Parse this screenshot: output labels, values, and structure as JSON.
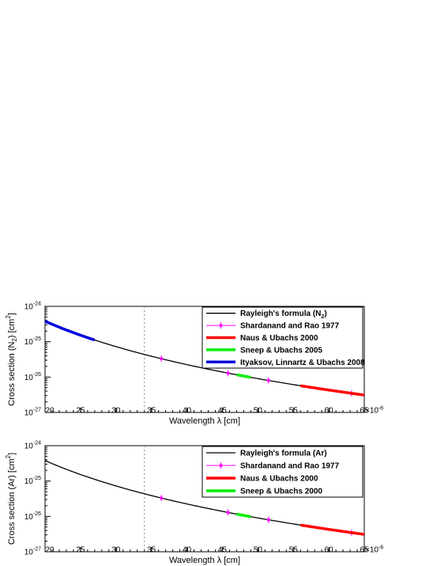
{
  "chart_data": [
    {
      "type": "line",
      "xlabel": "Wavelength λ [cm]",
      "ylabel_parts": [
        "Cross section (N",
        "2",
        ") [cm",
        "2",
        "]"
      ],
      "x_exponent": "×10",
      "x_exponent_sup": "-6",
      "x_ticks": [
        20,
        25,
        30,
        35,
        40,
        45,
        50,
        55,
        60,
        65
      ],
      "y_ticks": [
        {
          "base": "10",
          "exp": "-27"
        },
        {
          "base": "10",
          "exp": "-26"
        },
        {
          "base": "10",
          "exp": "-25"
        },
        {
          "base": "10",
          "exp": "-24"
        }
      ],
      "xlim": [
        20,
        65
      ],
      "ylim": [
        1e-27,
        1e-24
      ],
      "y_scale": "log",
      "vline_x": 34,
      "legend_position": "top-right",
      "series": [
        {
          "name_parts": [
            "Rayleigh's formula (N",
            "2",
            ")"
          ],
          "kind": "line",
          "color": "#000000",
          "x_range": [
            20,
            65
          ]
        },
        {
          "name_parts": [
            "Shardanand and Rao 1977"
          ],
          "kind": "points",
          "color": "#ff00ff",
          "x": [
            36.4,
            45.8,
            51.5,
            63.2
          ]
        },
        {
          "name_parts": [
            "Naus & Ubachs 2000"
          ],
          "kind": "band",
          "color": "#ff0000",
          "x_range": [
            56.0,
            65.0
          ]
        },
        {
          "name_parts": [
            "Sneep & Ubachs 2005"
          ],
          "kind": "band",
          "color": "#00ee00",
          "x_range": [
            47.0,
            49.0
          ]
        },
        {
          "name_parts": [
            "Ityaksov, Linnartz & Ubachs 2008"
          ],
          "kind": "band",
          "color": "#0000dd",
          "x_range": [
            20.0,
            27.0
          ]
        }
      ]
    },
    {
      "type": "line",
      "xlabel": "Wavelength λ [cm]",
      "ylabel_parts": [
        "Cross section (Ar) [cm",
        "2",
        "]"
      ],
      "x_exponent": "×10",
      "x_exponent_sup": "-6",
      "x_ticks": [
        20,
        25,
        30,
        35,
        40,
        45,
        50,
        55,
        60,
        65
      ],
      "y_ticks": [
        {
          "base": "10",
          "exp": "-27"
        },
        {
          "base": "10",
          "exp": "-26"
        },
        {
          "base": "10",
          "exp": "-25"
        },
        {
          "base": "10",
          "exp": "-24"
        }
      ],
      "xlim": [
        20,
        65
      ],
      "ylim": [
        1e-27,
        1e-24
      ],
      "y_scale": "log",
      "vline_x": 34,
      "legend_position": "top-right",
      "series": [
        {
          "name_parts": [
            "Rayleigh's formula (Ar)"
          ],
          "kind": "line",
          "color": "#000000",
          "x_range": [
            20,
            65
          ]
        },
        {
          "name_parts": [
            "Shardanand and Rao 1977"
          ],
          "kind": "points",
          "color": "#ff00ff",
          "x": [
            36.4,
            45.8,
            51.5,
            63.2
          ]
        },
        {
          "name_parts": [
            "Naus & Ubachs 2000"
          ],
          "kind": "band",
          "color": "#ff0000",
          "x_range": [
            56.0,
            65.0
          ]
        },
        {
          "name_parts": [
            "Sneep & Ubachs 2000"
          ],
          "kind": "band",
          "color": "#00ee00",
          "x_range": [
            47.0,
            49.0
          ]
        }
      ]
    }
  ]
}
